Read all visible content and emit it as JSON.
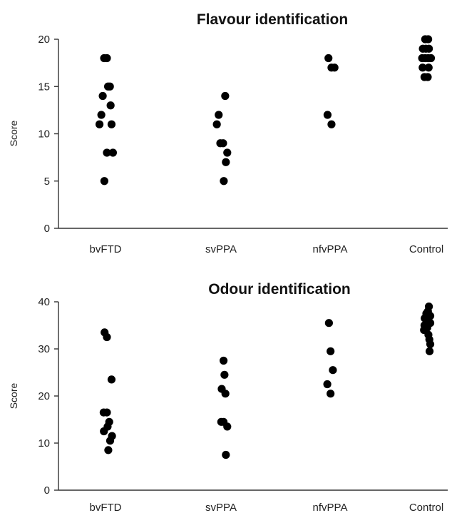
{
  "chart_data": [
    {
      "type": "scatter",
      "title": "Flavour identification",
      "ylabel": "Score",
      "xlabel": "",
      "categories": [
        "bvFTD",
        "svPPA",
        "nfvPPA",
        "Control"
      ],
      "ylim": [
        0,
        20
      ],
      "yticks": [
        0,
        5,
        10,
        15,
        20
      ],
      "grid": false,
      "points": [
        {
          "category": "bvFTD",
          "y": 18,
          "offset": -0.3
        },
        {
          "category": "bvFTD",
          "y": 18,
          "offset": 0.3
        },
        {
          "category": "bvFTD",
          "y": 15,
          "offset": 0.55
        },
        {
          "category": "bvFTD",
          "y": 15,
          "offset": 0.95
        },
        {
          "category": "bvFTD",
          "y": 14,
          "offset": -0.6
        },
        {
          "category": "bvFTD",
          "y": 13,
          "offset": 1.1
        },
        {
          "category": "bvFTD",
          "y": 12,
          "offset": -0.9
        },
        {
          "category": "bvFTD",
          "y": 11,
          "offset": -1.3
        },
        {
          "category": "bvFTD",
          "y": 11,
          "offset": 1.3
        },
        {
          "category": "bvFTD",
          "y": 8,
          "offset": 0.3
        },
        {
          "category": "bvFTD",
          "y": 8,
          "offset": 1.6
        },
        {
          "category": "bvFTD",
          "y": 5,
          "offset": -0.25
        },
        {
          "category": "svPPA",
          "y": 14,
          "offset": 0.9
        },
        {
          "category": "svPPA",
          "y": 12,
          "offset": -0.5
        },
        {
          "category": "svPPA",
          "y": 11,
          "offset": -0.9
        },
        {
          "category": "svPPA",
          "y": 9,
          "offset": -0.15
        },
        {
          "category": "svPPA",
          "y": 9,
          "offset": 0.45
        },
        {
          "category": "svPPA",
          "y": 8,
          "offset": 1.35
        },
        {
          "category": "svPPA",
          "y": 7,
          "offset": 1.05
        },
        {
          "category": "svPPA",
          "y": 5,
          "offset": 0.6
        },
        {
          "category": "nfvPPA",
          "y": 18,
          "offset": -0.35
        },
        {
          "category": "nfvPPA",
          "y": 17,
          "offset": 0.3
        },
        {
          "category": "nfvPPA",
          "y": 17,
          "offset": 0.95
        },
        {
          "category": "nfvPPA",
          "y": 12,
          "offset": -0.55
        },
        {
          "category": "nfvPPA",
          "y": 11,
          "offset": 0.3
        },
        {
          "category": "Control",
          "y": 20,
          "offset": -0.25
        },
        {
          "category": "Control",
          "y": 20,
          "offset": 0.4
        },
        {
          "category": "Control",
          "y": 19,
          "offset": -0.75
        },
        {
          "category": "Control",
          "y": 19,
          "offset": -0.1
        },
        {
          "category": "Control",
          "y": 19,
          "offset": 0.55
        },
        {
          "category": "Control",
          "y": 18,
          "offset": -0.9
        },
        {
          "category": "Control",
          "y": 18,
          "offset": -0.25
        },
        {
          "category": "Control",
          "y": 18,
          "offset": 0.4
        },
        {
          "category": "Control",
          "y": 18,
          "offset": 1.0
        },
        {
          "category": "Control",
          "y": 17,
          "offset": -0.8
        },
        {
          "category": "Control",
          "y": 17,
          "offset": 0.5
        },
        {
          "category": "Control",
          "y": 16,
          "offset": -0.4
        },
        {
          "category": "Control",
          "y": 16,
          "offset": 0.3
        }
      ]
    },
    {
      "type": "scatter",
      "title": "Odour identification",
      "ylabel": "Score",
      "xlabel": "",
      "categories": [
        "bvFTD",
        "svPPA",
        "nfvPPA",
        "Control"
      ],
      "ylim": [
        0,
        40
      ],
      "yticks": [
        0,
        10,
        20,
        30,
        40
      ],
      "grid": false,
      "points": [
        {
          "category": "bvFTD",
          "y": 33.5,
          "offset": -0.2
        },
        {
          "category": "bvFTD",
          "y": 32.5,
          "offset": 0.3
        },
        {
          "category": "bvFTD",
          "y": 23.5,
          "offset": 1.3
        },
        {
          "category": "bvFTD",
          "y": 16.5,
          "offset": -0.4
        },
        {
          "category": "bvFTD",
          "y": 16.5,
          "offset": 0.3
        },
        {
          "category": "bvFTD",
          "y": 14.5,
          "offset": 0.8
        },
        {
          "category": "bvFTD",
          "y": 13.5,
          "offset": 0.45
        },
        {
          "category": "bvFTD",
          "y": 12.5,
          "offset": -0.35
        },
        {
          "category": "bvFTD",
          "y": 11.5,
          "offset": 1.4
        },
        {
          "category": "bvFTD",
          "y": 10.5,
          "offset": 1.0
        },
        {
          "category": "bvFTD",
          "y": 8.5,
          "offset": 0.6
        },
        {
          "category": "svPPA",
          "y": 27.5,
          "offset": 0.55
        },
        {
          "category": "svPPA",
          "y": 24.5,
          "offset": 0.75
        },
        {
          "category": "svPPA",
          "y": 21.5,
          "offset": 0.15
        },
        {
          "category": "svPPA",
          "y": 20.5,
          "offset": 0.95
        },
        {
          "category": "svPPA",
          "y": 14.5,
          "offset": 0.05
        },
        {
          "category": "svPPA",
          "y": 14.5,
          "offset": 0.55
        },
        {
          "category": "svPPA",
          "y": 13.5,
          "offset": 1.35
        },
        {
          "category": "svPPA",
          "y": 7.5,
          "offset": 1.05
        },
        {
          "category": "nfvPPA",
          "y": 35.5,
          "offset": -0.25
        },
        {
          "category": "nfvPPA",
          "y": 29.5,
          "offset": 0.1
        },
        {
          "category": "nfvPPA",
          "y": 25.5,
          "offset": 0.6
        },
        {
          "category": "nfvPPA",
          "y": 22.5,
          "offset": -0.6
        },
        {
          "category": "nfvPPA",
          "y": 20.5,
          "offset": 0.1
        },
        {
          "category": "Control",
          "y": 39,
          "offset": 0.55
        },
        {
          "category": "Control",
          "y": 38,
          "offset": 0.35
        },
        {
          "category": "Control",
          "y": 37.5,
          "offset": 0.0
        },
        {
          "category": "Control",
          "y": 37,
          "offset": 0.85
        },
        {
          "category": "Control",
          "y": 36.5,
          "offset": -0.35
        },
        {
          "category": "Control",
          "y": 36,
          "offset": 0.35
        },
        {
          "category": "Control",
          "y": 35.5,
          "offset": 0.85
        },
        {
          "category": "Control",
          "y": 35,
          "offset": -0.4
        },
        {
          "category": "Control",
          "y": 34.5,
          "offset": 0.2
        },
        {
          "category": "Control",
          "y": 34,
          "offset": -0.5
        },
        {
          "category": "Control",
          "y": 33,
          "offset": 0.45
        },
        {
          "category": "Control",
          "y": 32,
          "offset": 0.65
        },
        {
          "category": "Control",
          "y": 31,
          "offset": 0.85
        },
        {
          "category": "Control",
          "y": 29.5,
          "offset": 0.7
        }
      ]
    }
  ]
}
